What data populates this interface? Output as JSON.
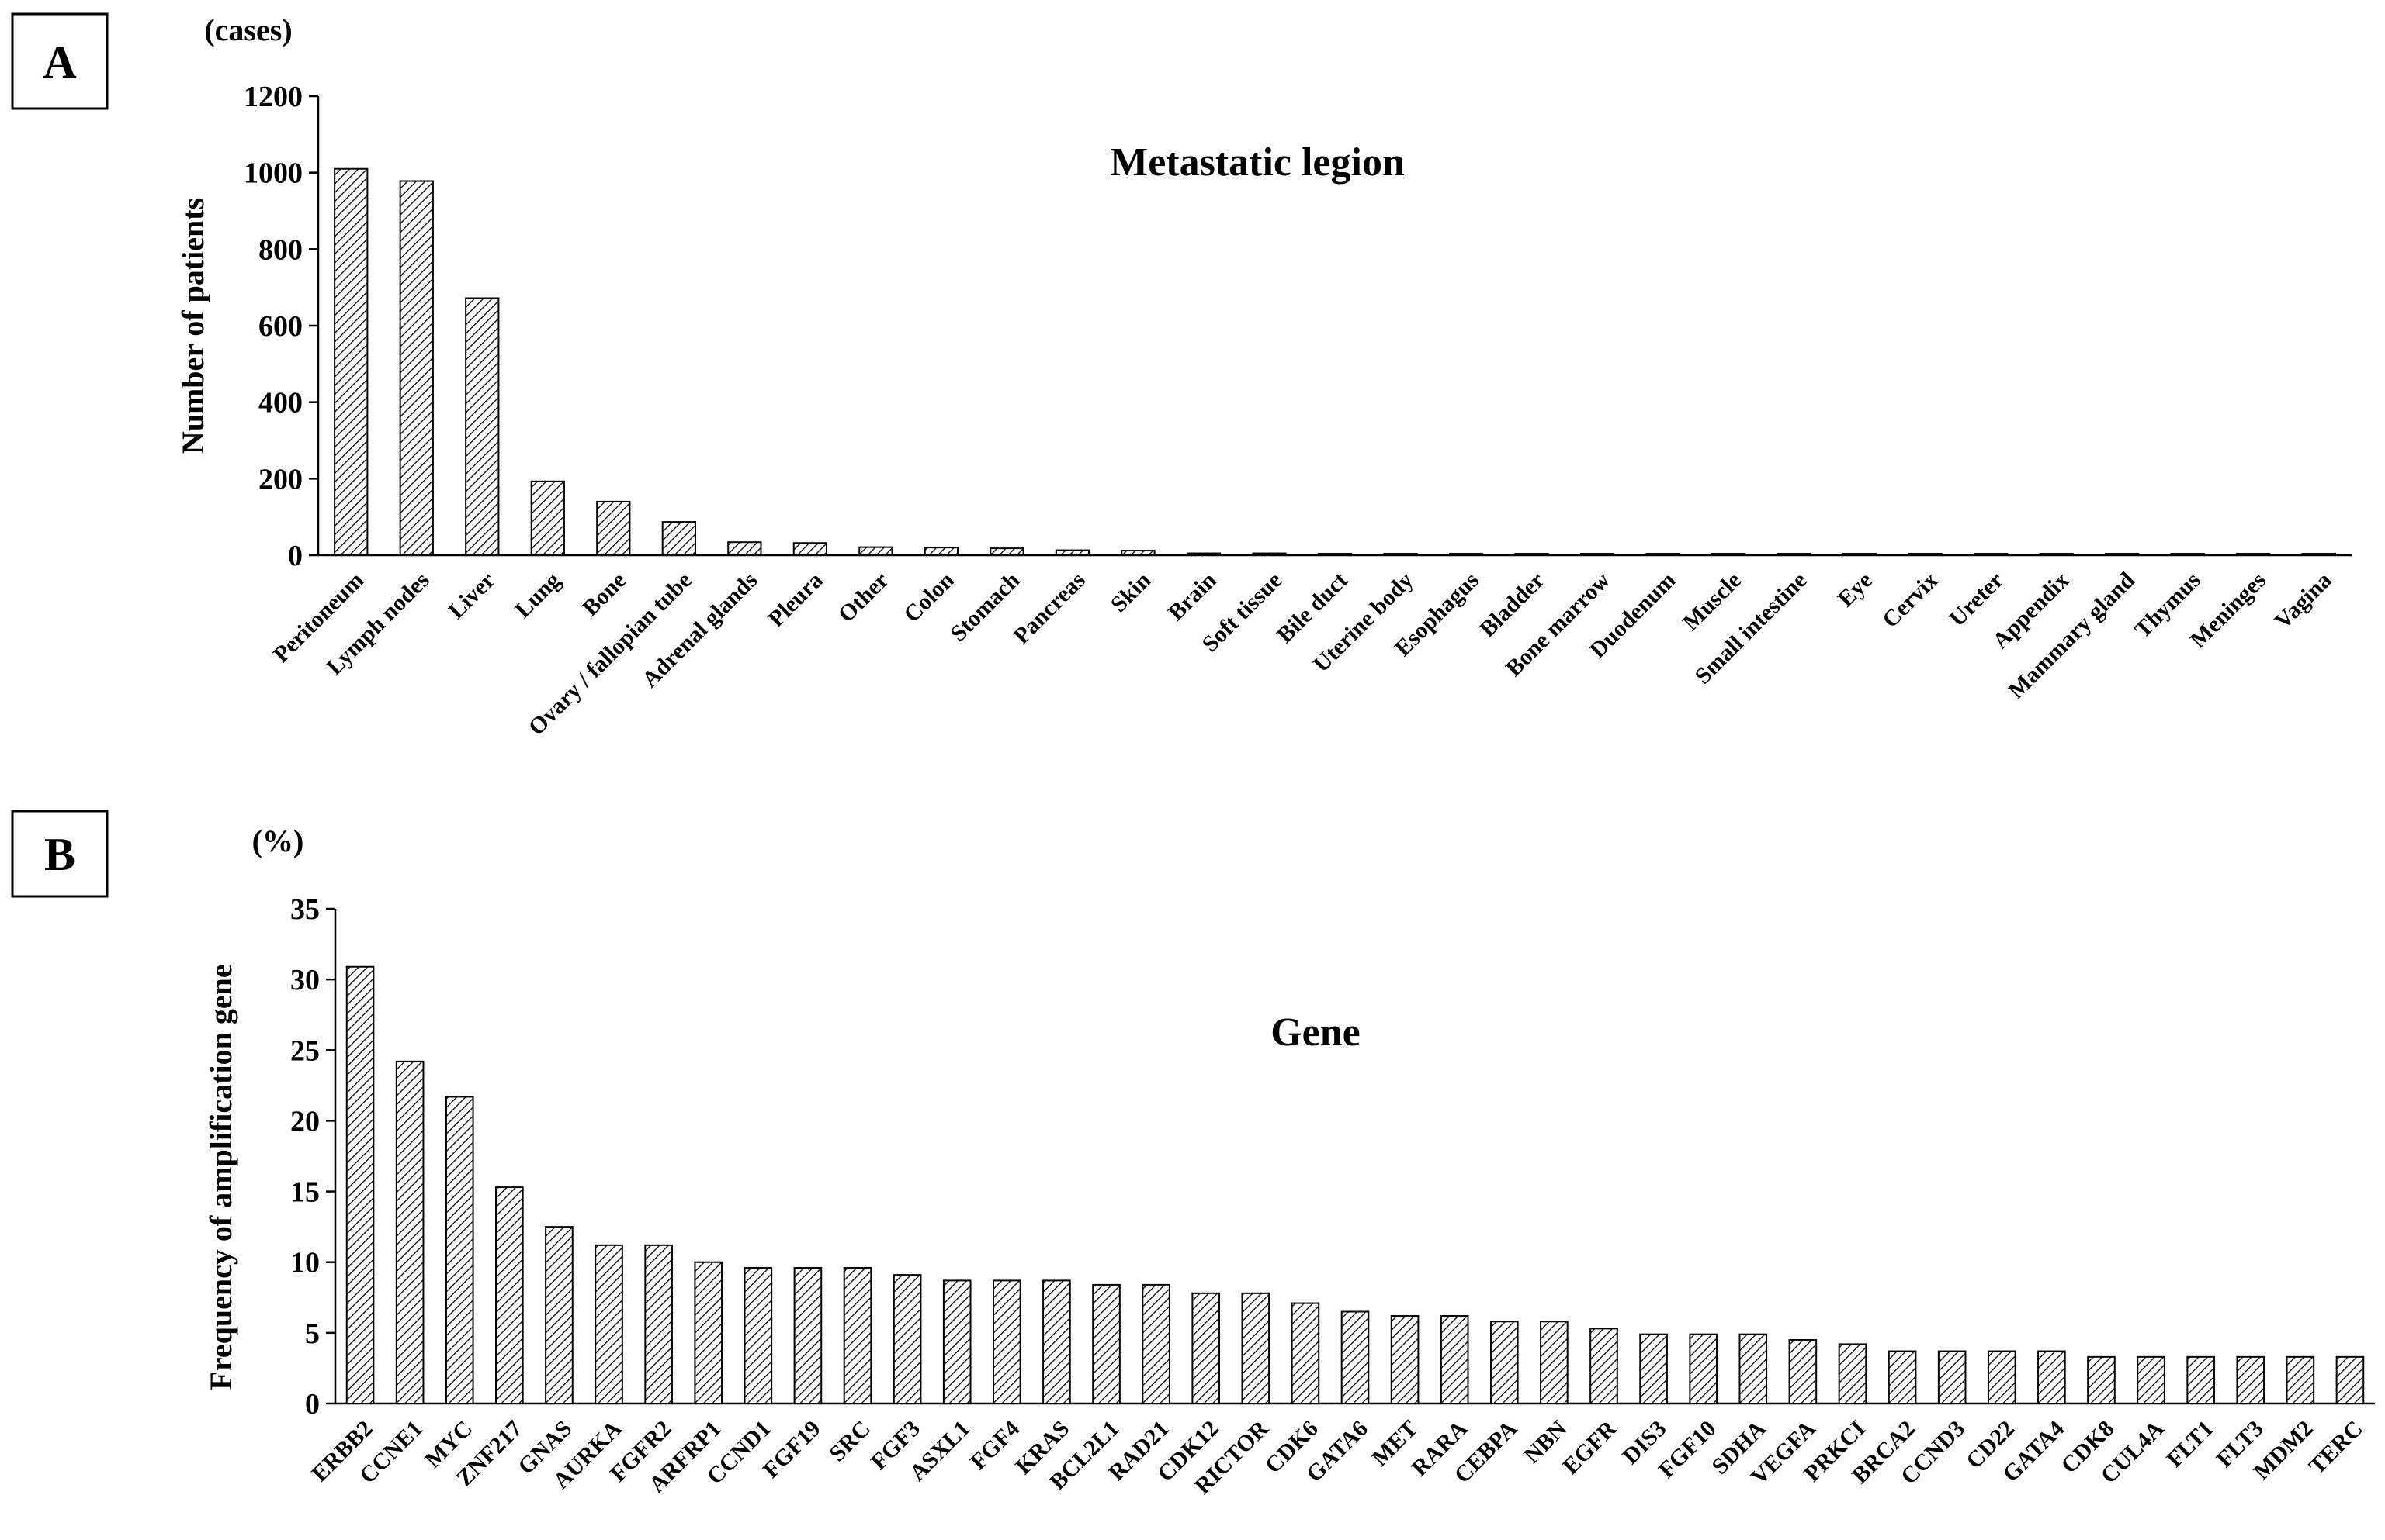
{
  "panels": {
    "a": {
      "label": "A",
      "unit": "(cases)",
      "title": "Metastatic legion",
      "ylabel": "Number of patients"
    },
    "b": {
      "label": "B",
      "unit": "(%)",
      "title": "Gene",
      "ylabel": "Frequency of  amplification gene"
    }
  },
  "chart_data": [
    {
      "type": "bar",
      "title": "Metastatic legion",
      "ylabel": "Number of patients",
      "xlabel": "",
      "ylim": [
        0,
        1200
      ],
      "yticks": [
        0,
        200,
        400,
        600,
        800,
        1000,
        1200
      ],
      "categories": [
        "Peritoneum",
        "Lymph nodes",
        "Liver",
        "Lung",
        "Bone",
        "Ovary / fallopian tube",
        "Adrenal glands",
        "Pleura",
        "Other",
        "Colon",
        "Stomach",
        "Pancreas",
        "Skin",
        "Brain",
        "Soft tissue",
        "Bile duct",
        "Uterine body",
        "Esophagus",
        "Bladder",
        "Bone marrow",
        "Duodenum",
        "Muscle",
        "Small intestine",
        "Eye",
        "Cervix",
        "Ureter",
        "Appendix",
        "Mammary gland",
        "Thymus",
        "Meninges",
        "Vagina"
      ],
      "values": [
        1010,
        978,
        672,
        193,
        140,
        87,
        34,
        32,
        21,
        20,
        18,
        13,
        12,
        5,
        5,
        4,
        4,
        4,
        4,
        4,
        4,
        4,
        4,
        4,
        4,
        4,
        4,
        4,
        4,
        4,
        4
      ],
      "bar_pattern": "diagonal-hatch",
      "grid": false
    },
    {
      "type": "bar",
      "title": "Gene",
      "ylabel": "Frequency of  amplification gene",
      "xlabel": "",
      "ylim": [
        0,
        35
      ],
      "yticks": [
        0,
        5,
        10,
        15,
        20,
        25,
        30,
        35
      ],
      "categories": [
        "ERBB2",
        "CCNE1",
        "MYC",
        "ZNF217",
        "GNAS",
        "AURKA",
        "FGFR2",
        "ARFRP1",
        "CCND1",
        "FGF19",
        "SRC",
        "FGF3",
        "ASXL1",
        "FGF4",
        "KRAS",
        "BCL2L1",
        "RAD21",
        "CDK12",
        "RICTOR",
        "CDK6",
        "GATA6",
        "MET",
        "RARA",
        "CEBPA",
        "NBN",
        "EGFR",
        "DIS3",
        "FGF10",
        "SDHA",
        "VEGFA",
        "PRKCI",
        "BRCA2",
        "CCND3",
        "CD22",
        "GATA4",
        "CDK8",
        "CUL4A",
        "FLT1",
        "FLT3",
        "MDM2",
        "TERC"
      ],
      "values": [
        30.9,
        24.2,
        21.7,
        15.3,
        12.5,
        11.2,
        11.2,
        10.0,
        9.6,
        9.6,
        9.6,
        9.1,
        8.7,
        8.7,
        8.7,
        8.4,
        8.4,
        7.8,
        7.8,
        7.1,
        6.5,
        6.2,
        6.2,
        5.8,
        5.8,
        5.3,
        4.9,
        4.9,
        4.9,
        4.5,
        4.2,
        3.7,
        3.7,
        3.7,
        3.7,
        3.3,
        3.3,
        3.3,
        3.3,
        3.3,
        3.3
      ],
      "bar_pattern": "diagonal-hatch",
      "grid": false
    }
  ]
}
